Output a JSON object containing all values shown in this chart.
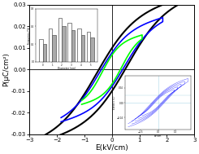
{
  "title": "",
  "xlabel": "E(kV/cm)",
  "ylabel": "P(μC/cm²)",
  "xlim": [
    -3,
    3
  ],
  "ylim": [
    -0.03,
    0.03
  ],
  "xticks": [
    -3,
    -2,
    -1,
    0,
    1,
    2,
    3
  ],
  "yticks": [
    -0.03,
    -0.02,
    -0.01,
    0.0,
    0.01,
    0.02,
    0.03
  ],
  "bg_color": "#ffffff",
  "loop_black": {
    "color": "black",
    "linewidth": 1.5,
    "a": 2.45,
    "b": 0.026,
    "coercive": 0.55,
    "sharpness": 1.8
  },
  "loop_blue": {
    "color": "blue",
    "linewidth": 1.2,
    "a": 1.85,
    "b": 0.019,
    "coercive": 0.45,
    "sharpness": 1.8
  },
  "loop_green": {
    "color": "lime",
    "linewidth": 1.2,
    "a": 1.1,
    "b": 0.013,
    "coercive": 0.35,
    "sharpness": 1.8
  },
  "inset1": {
    "bar_heights_white": [
      0.13,
      0.19,
      0.25,
      0.22,
      0.19,
      0.17
    ],
    "bar_heights_gray": [
      0.1,
      0.15,
      0.2,
      0.18,
      0.15,
      0.14
    ],
    "ylabel": "Frequency (%)",
    "xlabel": "Diameter (nm)"
  },
  "inset2": {
    "color": "blue",
    "ylabel": "Electric (C)",
    "xlabel": "kV/cm"
  }
}
